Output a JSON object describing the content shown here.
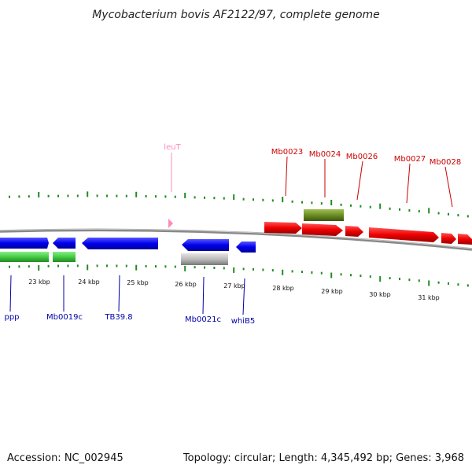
{
  "title": "Mycobacterium bovis AF2122/97, complete genome",
  "footer": {
    "accession": "Accession: NC_002945",
    "summary": "Topology: circular; Length: 4,345,492 bp; Genes: 3,968"
  },
  "colors": {
    "forward_cds": "#ee0000",
    "reverse_cds": "#0000ee",
    "rna": "#44cc44",
    "pseudo": "#bbbbbb",
    "other": "#6b8e23",
    "trna": "#ff88bb",
    "backbone": "#888888",
    "ticks": "#228b22",
    "label_top": "#cc0000",
    "label_bottom": "#0000aa"
  },
  "kbp_labels": [
    "23 kbp",
    "24 kbp",
    "25 kbp",
    "26 kbp",
    "27 kbp",
    "28 kbp",
    "29 kbp",
    "30 kbp",
    "31 kbp"
  ],
  "top_labels": [
    "leuT",
    "Mb0023",
    "Mb0024",
    "Mb0026",
    "Mb0027",
    "Mb0028"
  ],
  "bottom_labels": [
    "ppp",
    "Mb0019c",
    "TB39.8",
    "Mb0021c",
    "whiB5"
  ]
}
